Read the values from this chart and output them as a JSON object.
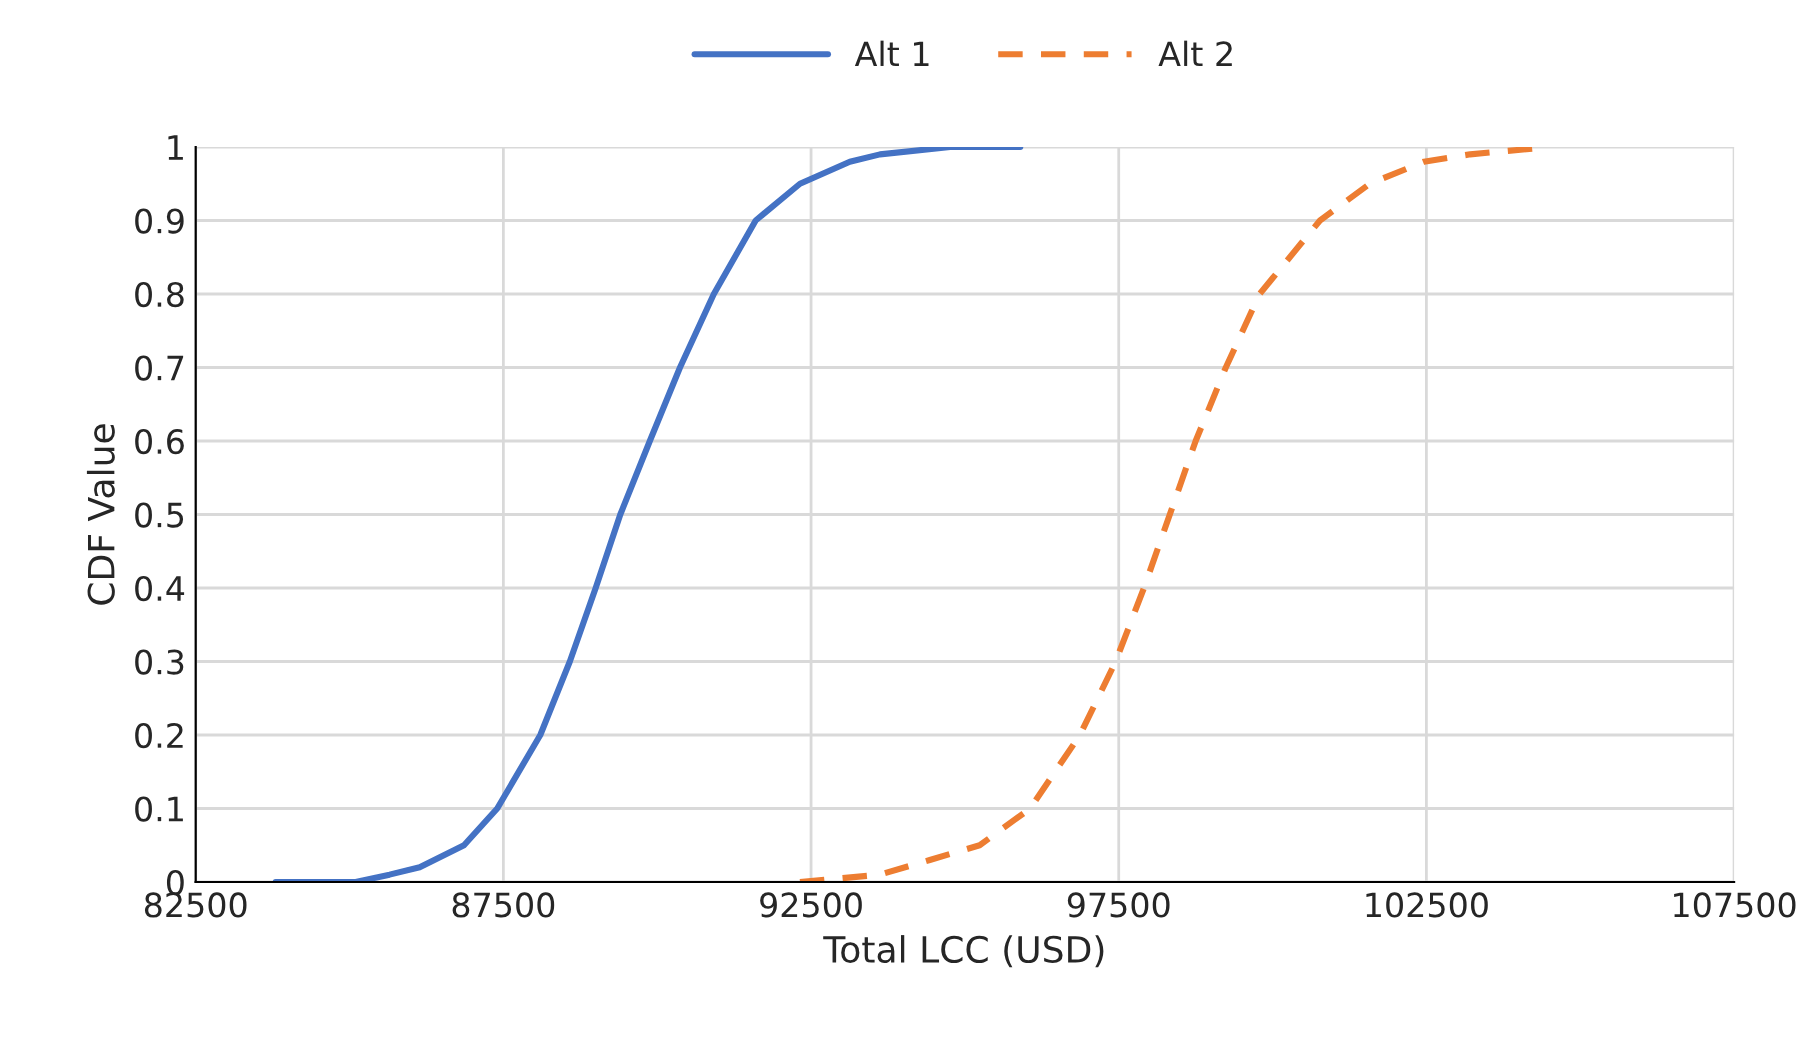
{
  "chart_data": {
    "type": "line",
    "xlabel": "Total LCC (USD)",
    "ylabel": "CDF Value",
    "xlim": [
      82500,
      107500
    ],
    "xticks": [
      82500,
      87500,
      92500,
      97500,
      102500,
      107500
    ],
    "ylim": [
      0,
      1
    ],
    "yticks": [
      0,
      0.1,
      0.2,
      0.3,
      0.4,
      0.5,
      0.6,
      0.7,
      0.8,
      0.9,
      1
    ],
    "grid": true,
    "legend": "top",
    "marker": "none",
    "series": [
      {
        "name": "Alt 1",
        "color": "#4472c4",
        "line_style": "solid",
        "x": [
          83800,
          85100,
          85650,
          86140,
          86860,
          87400,
          88100,
          88580,
          89000,
          89400,
          89880,
          90370,
          90920,
          91600,
          92320,
          93130,
          93620,
          94760,
          95900
        ],
        "values": [
          0,
          0,
          0.01,
          0.02,
          0.05,
          0.1,
          0.2,
          0.3,
          0.4,
          0.5,
          0.6,
          0.7,
          0.8,
          0.9,
          0.95,
          0.98,
          0.99,
          1,
          1
        ]
      },
      {
        "name": "Alt 2",
        "color": "#ed7d31",
        "line_style": "dashed",
        "x": [
          92320,
          93620,
          94430,
          95240,
          96060,
          96870,
          97450,
          97910,
          98330,
          98750,
          99240,
          99790,
          100770,
          101580,
          102460,
          103210,
          104510
        ],
        "values": [
          0,
          0.01,
          0.03,
          0.05,
          0.1,
          0.2,
          0.3,
          0.4,
          0.5,
          0.6,
          0.7,
          0.8,
          0.9,
          0.95,
          0.98,
          0.99,
          1
        ]
      }
    ]
  }
}
